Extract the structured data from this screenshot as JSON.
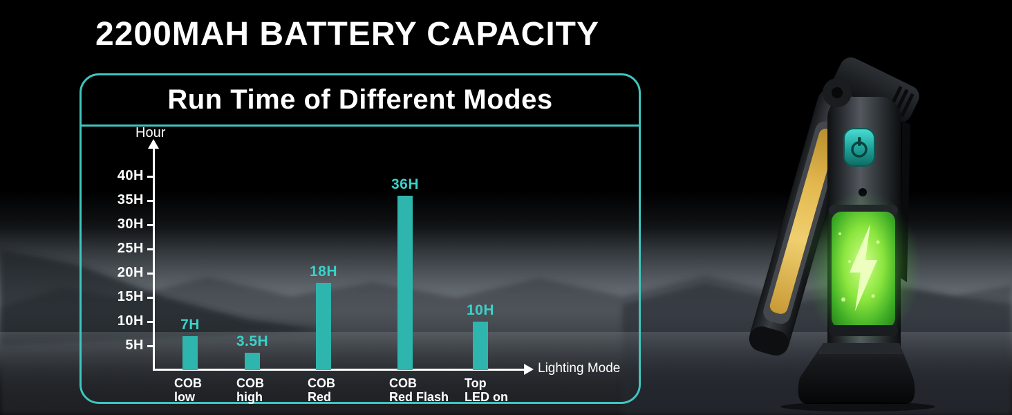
{
  "header": {
    "title": "2200MAH BATTERY CAPACITY"
  },
  "panel": {
    "title": "Run Time of Different Modes"
  },
  "chart_data": {
    "type": "bar",
    "title": "Run Time of Different Modes",
    "categories": [
      [
        "COB",
        "low"
      ],
      [
        "COB",
        "high"
      ],
      [
        "COB",
        "Red"
      ],
      [
        "COB",
        "Red Flash"
      ],
      [
        "Top",
        "LED on"
      ]
    ],
    "values": [
      7,
      3.5,
      18,
      36,
      10
    ],
    "bar_labels": [
      "7H",
      "3.5H",
      "18H",
      "36H",
      "10H"
    ],
    "xlabel": "Lighting Mode",
    "ylabel": "Hour",
    "yticks": [
      5,
      10,
      15,
      20,
      25,
      30,
      35,
      40
    ],
    "ytick_labels": [
      "5H",
      "10H",
      "15H",
      "20H",
      "25H",
      "30H",
      "35H",
      "40H"
    ],
    "ylim": [
      0,
      43
    ],
    "grid": false,
    "legend": false,
    "bar_color": "#2eb5ae",
    "label_color": "#3ad2c9"
  },
  "colors": {
    "accent_border": "#3fc6bf",
    "axis": "#ffffff",
    "title_text": "#ffffff",
    "battery_glow": "#7dff4e",
    "cob_strip": "#e8c05a",
    "power_button": "#21a49b"
  }
}
